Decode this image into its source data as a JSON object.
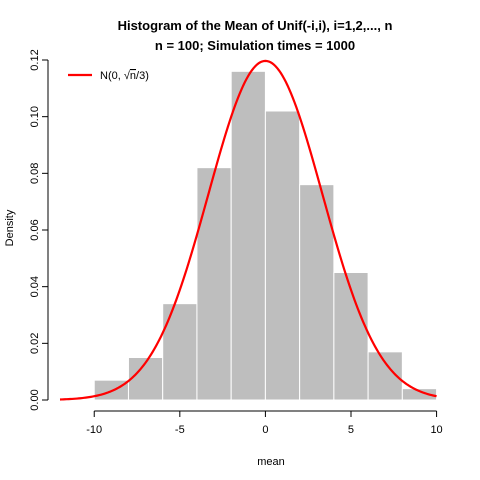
{
  "chart_data": {
    "type": "histogram",
    "title": "Histogram of the Mean of Unif(-i,i), i=1,2,..., n",
    "subtitle": "n = 100; Simulation times = 1000",
    "xlabel": "mean",
    "ylabel": "Density",
    "xlim": [
      -12,
      10.2
    ],
    "ylim": [
      0,
      0.12
    ],
    "x_ticks": [
      -10,
      -5,
      0,
      5,
      10
    ],
    "x_tick_labels": [
      "-10",
      "-5",
      "0",
      "5",
      "10"
    ],
    "y_ticks": [
      0,
      0.02,
      0.04,
      0.06,
      0.08,
      0.1,
      0.12
    ],
    "y_tick_labels": [
      "0.00",
      "0.02",
      "0.04",
      "0.06",
      "0.08",
      "0.10",
      "0.12"
    ],
    "bins": [
      {
        "x0": -10,
        "x1": -8,
        "density": 0.007
      },
      {
        "x0": -8,
        "x1": -6,
        "density": 0.015
      },
      {
        "x0": -6,
        "x1": -4,
        "density": 0.034
      },
      {
        "x0": -4,
        "x1": -2,
        "density": 0.082
      },
      {
        "x0": -2,
        "x1": 0,
        "density": 0.116
      },
      {
        "x0": 0,
        "x1": 2,
        "density": 0.102
      },
      {
        "x0": 2,
        "x1": 4,
        "density": 0.076
      },
      {
        "x0": 4,
        "x1": 6,
        "density": 0.045
      },
      {
        "x0": 6,
        "x1": 8,
        "density": 0.017
      },
      {
        "x0": 8,
        "x1": 10,
        "density": 0.004
      }
    ],
    "curve": {
      "type": "normal-density",
      "mean": 0,
      "sd": 3.3333,
      "x_range": [
        -12,
        10
      ],
      "legend_label_prefix": "N(0, ",
      "legend_label_n": "n",
      "legend_label_suffix": "/3)"
    },
    "grid": false,
    "legend_position": "top-left",
    "colors": {
      "bars": "#bebebe",
      "bar_border": "#ffffff",
      "curve": "#ff0000",
      "axis": "#000000"
    }
  }
}
